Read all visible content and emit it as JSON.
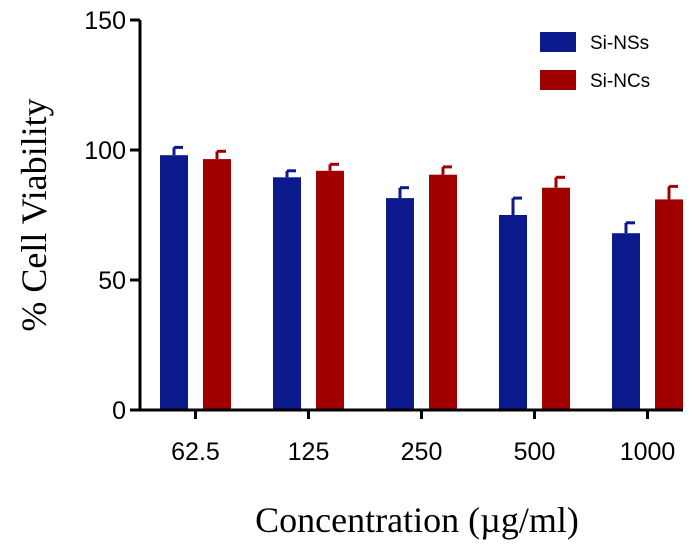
{
  "chart_data": {
    "type": "bar",
    "xlabel": "Concentration (µg/ml)",
    "ylabel": "% Cell Viability",
    "ylim": [
      0,
      150
    ],
    "yticks": [
      0,
      50,
      100,
      150
    ],
    "grid": false,
    "legend_position": "top-right",
    "categories": [
      "62.5",
      "125",
      "250",
      "500",
      "1000"
    ],
    "series": [
      {
        "name": "Si-NSs",
        "color": "#0a1a8c",
        "values": [
          98,
          89.5,
          81.5,
          75,
          68
        ],
        "errors": [
          3,
          2.5,
          4,
          6.5,
          4
        ]
      },
      {
        "name": "Si-NCs",
        "color": "#a00000",
        "values": [
          96.5,
          92,
          90.5,
          85.5,
          81
        ],
        "errors": [
          3,
          2.5,
          3,
          4,
          5
        ]
      }
    ]
  }
}
